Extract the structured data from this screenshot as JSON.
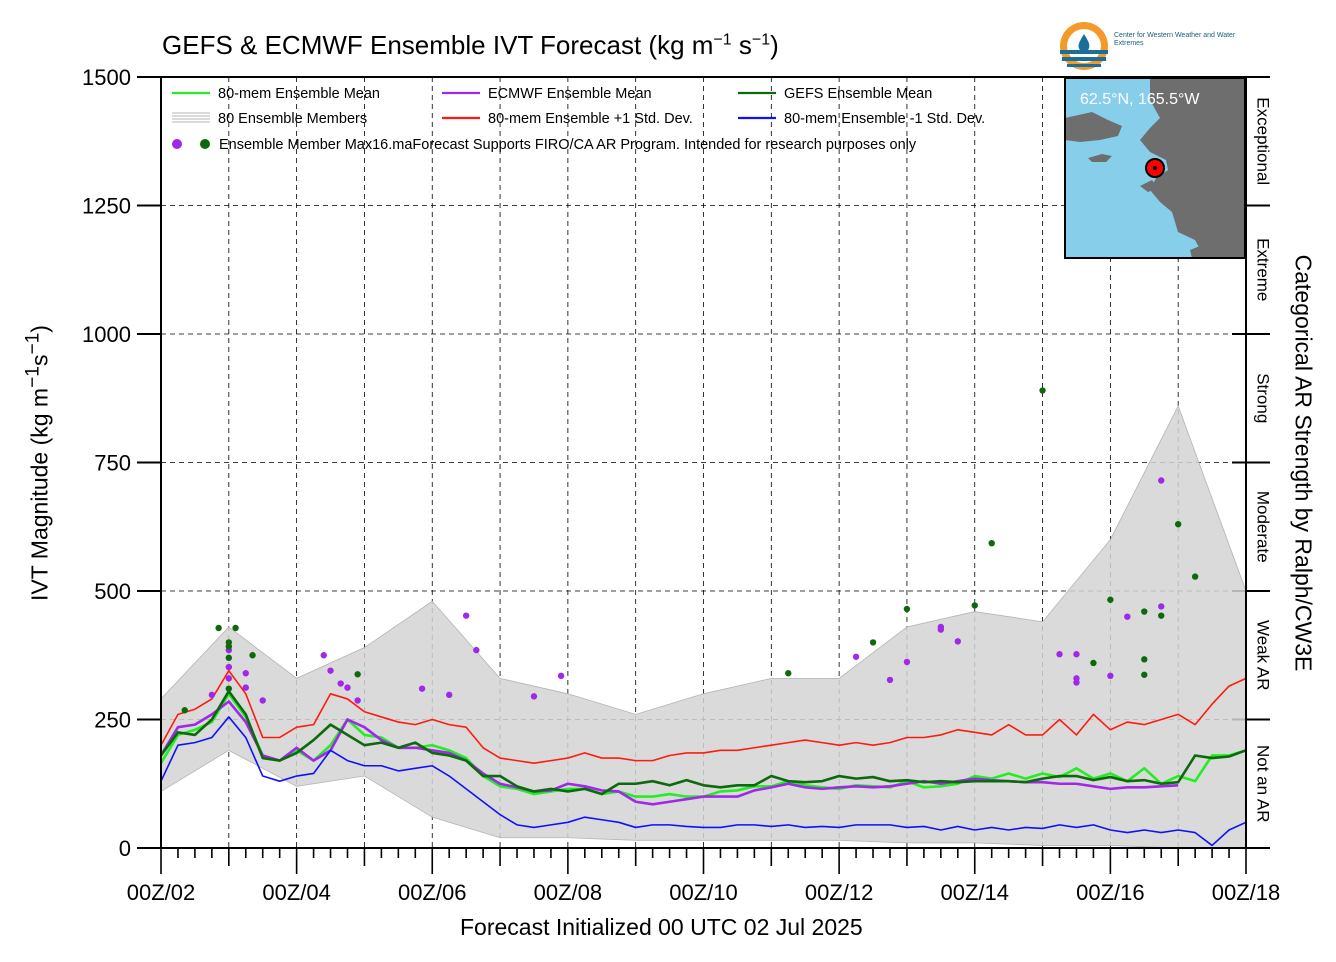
{
  "header": {
    "title_prefix": "GEFS & ECMWF Ensemble IVT Forecast (kg m",
    "title_sup1": "−1",
    "title_mid": " s",
    "title_sup2": "−1",
    "title_suffix": ")"
  },
  "logo": {
    "text": "Center for Western Weather and Water Extremes",
    "brand_color": "#f39a2b",
    "brand_color_2": "#1a6f9a"
  },
  "axes": {
    "xlabel": "Forecast Initialized 00 UTC 02 Jul 2025",
    "ylabel_prefix": "IVT Magnitude (kg m",
    "ylabel_sup1": "−1",
    "ylabel_mid": "s",
    "ylabel_sup2": "−1",
    "ylabel_suffix": ")",
    "right_label": "Categorical AR Strength by Ralph/CW3E"
  },
  "map_inset": {
    "location": "62.5°N, 165.5°W",
    "ocean_color": "#87ceeb",
    "land_color": "#6e6e6e"
  },
  "legend": {
    "items": [
      {
        "label": "80-mem Ensemble Mean",
        "color": "#22ee22"
      },
      {
        "label": "ECMWF Ensemble Mean",
        "color": "#a028e8"
      },
      {
        "label": "GEFS Ensemble Mean",
        "color": "#0c6a0c"
      },
      {
        "label": "80 Ensemble Members",
        "color": "#b4b4b4"
      },
      {
        "label": "80-mem Ensemble +1 Std. Dev.",
        "color": "#ff1a0f"
      },
      {
        "label": "80-mem Ensemble -1 Std. Dev.",
        "color": "#1010ff"
      }
    ],
    "note": "Ensemble Member Max16.maForecast Supports FIRO/CA AR Program. Intended for research purposes only",
    "marker_colors": [
      "#a028e8",
      "#0c6a0c"
    ]
  },
  "chart_data": {
    "type": "line",
    "x_unit": "days after 00Z 02 Jul 2025 (6-hourly)",
    "xlim": [
      0,
      16
    ],
    "ylim": [
      0,
      1500
    ],
    "yticks": [
      0,
      250,
      500,
      750,
      1000,
      1250,
      1500
    ],
    "xtick_labels": [
      "00Z/02",
      "00Z/04",
      "00Z/06",
      "00Z/08",
      "00Z/10",
      "00Z/12",
      "00Z/14",
      "00Z/16",
      "00Z/18"
    ],
    "xtick_label_days": [
      0,
      2,
      4,
      6,
      8,
      10,
      12,
      14,
      16
    ],
    "grid": true,
    "legend_position": "top-left",
    "categories": [
      {
        "label": "Not an AR",
        "range": [
          0,
          250
        ]
      },
      {
        "label": "Weak AR",
        "range": [
          250,
          500
        ]
      },
      {
        "label": "Moderate",
        "range": [
          500,
          750
        ]
      },
      {
        "label": "Strong",
        "range": [
          750,
          1000
        ]
      },
      {
        "label": "Extreme",
        "range": [
          1000,
          1250
        ]
      },
      {
        "label": "Exceptional",
        "range": [
          1250,
          1500
        ]
      }
    ],
    "series": [
      {
        "name": "80-mem Ensemble Mean",
        "color": "#22ee22",
        "x": [
          0,
          0.25,
          0.5,
          0.75,
          1,
          1.25,
          1.5,
          1.75,
          2,
          2.25,
          2.5,
          2.75,
          3,
          3.25,
          3.5,
          3.75,
          4,
          4.25,
          4.5,
          4.75,
          5,
          5.25,
          5.5,
          5.75,
          6,
          6.25,
          6.5,
          6.75,
          7,
          7.25,
          7.5,
          7.75,
          8,
          8.25,
          8.5,
          8.75,
          9,
          9.25,
          9.5,
          9.75,
          10,
          10.25,
          10.5,
          10.75,
          11,
          11.25,
          11.5,
          11.75,
          12,
          12.25,
          12.5,
          12.75,
          13,
          13.25,
          13.5,
          13.75,
          14,
          14.25,
          14.5,
          14.75,
          15,
          15.25,
          15.5,
          15.75,
          16
        ],
        "values": [
          165,
          220,
          230,
          245,
          300,
          255,
          180,
          170,
          190,
          170,
          200,
          250,
          220,
          215,
          195,
          195,
          200,
          190,
          175,
          140,
          120,
          115,
          105,
          110,
          115,
          115,
          105,
          110,
          100,
          100,
          105,
          100,
          100,
          110,
          112,
          120,
          120,
          130,
          122,
          118,
          115,
          122,
          120,
          118,
          130,
          118,
          120,
          125,
          140,
          135,
          145,
          135,
          145,
          138,
          155,
          135,
          145,
          130,
          155,
          125,
          140,
          130,
          180,
          180,
          190
        ]
      },
      {
        "name": "ECMWF Ensemble Mean",
        "color": "#a028e8",
        "x": [
          0,
          0.25,
          0.5,
          0.75,
          1,
          1.25,
          1.5,
          1.75,
          2,
          2.25,
          2.5,
          2.75,
          3,
          3.25,
          3.5,
          3.75,
          4,
          4.25,
          4.5,
          4.75,
          5,
          5.25,
          5.5,
          5.75,
          6,
          6.25,
          6.5,
          6.75,
          7,
          7.25,
          7.5,
          7.75,
          8,
          8.25,
          8.5,
          8.75,
          9,
          9.25,
          9.5,
          9.75,
          10,
          10.25,
          10.5,
          10.75,
          11,
          11.25,
          11.5,
          11.75,
          12,
          12.25,
          12.5,
          12.75,
          13,
          13.25,
          13.5,
          13.75,
          14,
          14.25,
          14.5,
          14.75,
          15
        ],
        "values": [
          180,
          235,
          240,
          260,
          285,
          245,
          180,
          170,
          195,
          170,
          190,
          250,
          235,
          210,
          195,
          195,
          190,
          185,
          170,
          145,
          125,
          118,
          110,
          112,
          125,
          120,
          112,
          110,
          90,
          85,
          90,
          95,
          100,
          100,
          100,
          112,
          118,
          125,
          118,
          115,
          118,
          120,
          118,
          120,
          125,
          130,
          125,
          130,
          135,
          132,
          130,
          128,
          128,
          125,
          125,
          120,
          115,
          118,
          118,
          120,
          122
        ]
      },
      {
        "name": "GEFS Ensemble Mean",
        "color": "#0c6a0c",
        "x": [
          0,
          0.25,
          0.5,
          0.75,
          1,
          1.25,
          1.5,
          1.75,
          2,
          2.25,
          2.5,
          2.75,
          3,
          3.25,
          3.5,
          3.75,
          4,
          4.25,
          4.5,
          4.75,
          5,
          5.25,
          5.5,
          5.75,
          6,
          6.25,
          6.5,
          6.75,
          7,
          7.25,
          7.5,
          7.75,
          8,
          8.25,
          8.5,
          8.75,
          9,
          9.25,
          9.5,
          9.75,
          10,
          10.25,
          10.5,
          10.75,
          11,
          11.25,
          11.5,
          11.75,
          12,
          12.25,
          12.5,
          12.75,
          13,
          13.25,
          13.5,
          13.75,
          14,
          14.25,
          14.5,
          14.75,
          15,
          15.25,
          15.5,
          15.75,
          16
        ],
        "values": [
          180,
          225,
          220,
          250,
          305,
          260,
          175,
          170,
          185,
          210,
          240,
          220,
          200,
          205,
          195,
          205,
          185,
          180,
          170,
          140,
          140,
          120,
          110,
          115,
          110,
          115,
          105,
          125,
          125,
          130,
          122,
          132,
          122,
          118,
          122,
          122,
          140,
          130,
          128,
          130,
          140,
          135,
          138,
          130,
          132,
          128,
          130,
          128,
          130,
          130,
          130,
          128,
          135,
          140,
          140,
          132,
          138,
          130,
          132,
          125,
          128,
          180,
          175,
          178,
          190
        ]
      },
      {
        "name": "80-mem Ensemble +1 Std. Dev.",
        "color": "#ff1a0f",
        "x": [
          0,
          0.25,
          0.5,
          0.75,
          1,
          1.25,
          1.5,
          1.75,
          2,
          2.25,
          2.5,
          2.75,
          3,
          3.25,
          3.5,
          3.75,
          4,
          4.25,
          4.5,
          4.75,
          5,
          5.25,
          5.5,
          5.75,
          6,
          6.25,
          6.5,
          6.75,
          7,
          7.25,
          7.5,
          7.75,
          8,
          8.25,
          8.5,
          8.75,
          9,
          9.25,
          9.5,
          9.75,
          10,
          10.25,
          10.5,
          10.75,
          11,
          11.25,
          11.5,
          11.75,
          12,
          12.25,
          12.5,
          12.75,
          13,
          13.25,
          13.5,
          13.75,
          14,
          14.25,
          14.5,
          14.75,
          15,
          15.25,
          15.5,
          15.75,
          16
        ],
        "values": [
          200,
          260,
          270,
          290,
          345,
          300,
          215,
          215,
          235,
          240,
          300,
          290,
          265,
          255,
          245,
          240,
          250,
          240,
          235,
          195,
          175,
          170,
          165,
          170,
          175,
          185,
          175,
          175,
          170,
          170,
          180,
          185,
          185,
          190,
          190,
          195,
          200,
          205,
          210,
          205,
          200,
          205,
          200,
          205,
          215,
          215,
          220,
          230,
          225,
          220,
          240,
          220,
          220,
          250,
          220,
          260,
          230,
          245,
          240,
          250,
          260,
          240,
          280,
          315,
          330
        ]
      },
      {
        "name": "80-mem Ensemble -1 Std. Dev.",
        "color": "#1010ff",
        "x": [
          0,
          0.25,
          0.5,
          0.75,
          1,
          1.25,
          1.5,
          1.75,
          2,
          2.25,
          2.5,
          2.75,
          3,
          3.25,
          3.5,
          3.75,
          4,
          4.25,
          4.5,
          4.75,
          5,
          5.25,
          5.5,
          5.75,
          6,
          6.25,
          6.5,
          6.75,
          7,
          7.25,
          7.5,
          7.75,
          8,
          8.25,
          8.5,
          8.75,
          9,
          9.25,
          9.5,
          9.75,
          10,
          10.25,
          10.5,
          10.75,
          11,
          11.25,
          11.5,
          11.75,
          12,
          12.25,
          12.5,
          12.75,
          13,
          13.25,
          13.5,
          13.75,
          14,
          14.25,
          14.5,
          14.75,
          15,
          15.25,
          15.5,
          15.75,
          16
        ],
        "values": [
          130,
          200,
          205,
          215,
          255,
          215,
          140,
          130,
          140,
          145,
          190,
          170,
          160,
          160,
          150,
          155,
          160,
          140,
          115,
          90,
          65,
          45,
          40,
          45,
          50,
          60,
          55,
          50,
          40,
          45,
          45,
          42,
          40,
          40,
          45,
          45,
          42,
          45,
          40,
          42,
          40,
          45,
          45,
          45,
          40,
          42,
          35,
          42,
          35,
          40,
          35,
          40,
          38,
          45,
          40,
          45,
          35,
          30,
          35,
          30,
          35,
          30,
          5,
          35,
          50
        ]
      }
    ],
    "ensemble_spread": {
      "name": "80 Ensemble Members",
      "x": [
        0,
        1,
        2,
        3,
        4,
        5,
        6,
        7,
        8,
        9,
        10,
        11,
        12,
        13,
        14,
        15,
        16
      ],
      "min": [
        110,
        190,
        120,
        140,
        60,
        20,
        20,
        15,
        15,
        15,
        15,
        10,
        10,
        5,
        5,
        0,
        0
      ],
      "max": [
        290,
        430,
        330,
        390,
        480,
        330,
        300,
        260,
        300,
        330,
        330,
        430,
        460,
        440,
        600,
        860,
        500
      ]
    },
    "ecmwf_member_max": [
      {
        "x": 0.75,
        "y": 298
      },
      {
        "x": 1.0,
        "y": 385
      },
      {
        "x": 1.0,
        "y": 352
      },
      {
        "x": 1.0,
        "y": 330
      },
      {
        "x": 1.25,
        "y": 340
      },
      {
        "x": 1.25,
        "y": 312
      },
      {
        "x": 1.5,
        "y": 287
      },
      {
        "x": 2.4,
        "y": 375
      },
      {
        "x": 2.5,
        "y": 345
      },
      {
        "x": 2.65,
        "y": 320
      },
      {
        "x": 2.75,
        "y": 312
      },
      {
        "x": 2.9,
        "y": 287
      },
      {
        "x": 3.85,
        "y": 310
      },
      {
        "x": 4.25,
        "y": 298
      },
      {
        "x": 4.5,
        "y": 452
      },
      {
        "x": 4.65,
        "y": 385
      },
      {
        "x": 5.5,
        "y": 295
      },
      {
        "x": 5.9,
        "y": 335
      },
      {
        "x": 10.25,
        "y": 372
      },
      {
        "x": 10.75,
        "y": 327
      },
      {
        "x": 11.0,
        "y": 362
      },
      {
        "x": 11.5,
        "y": 430
      },
      {
        "x": 11.5,
        "y": 425
      },
      {
        "x": 11.75,
        "y": 402
      },
      {
        "x": 13.25,
        "y": 377
      },
      {
        "x": 13.5,
        "y": 377
      },
      {
        "x": 13.5,
        "y": 330
      },
      {
        "x": 13.5,
        "y": 322
      },
      {
        "x": 14.0,
        "y": 335
      },
      {
        "x": 14.25,
        "y": 450
      },
      {
        "x": 14.75,
        "y": 715
      },
      {
        "x": 14.75,
        "y": 470
      }
    ],
    "gefs_member_max": [
      {
        "x": 0.35,
        "y": 268
      },
      {
        "x": 0.85,
        "y": 428
      },
      {
        "x": 1.0,
        "y": 400
      },
      {
        "x": 1.0,
        "y": 392
      },
      {
        "x": 1.0,
        "y": 370
      },
      {
        "x": 1.0,
        "y": 310
      },
      {
        "x": 1.1,
        "y": 428
      },
      {
        "x": 1.35,
        "y": 375
      },
      {
        "x": 2.9,
        "y": 338
      },
      {
        "x": 9.25,
        "y": 340
      },
      {
        "x": 10.5,
        "y": 400
      },
      {
        "x": 11.0,
        "y": 465
      },
      {
        "x": 12.0,
        "y": 472
      },
      {
        "x": 12.25,
        "y": 593
      },
      {
        "x": 13.0,
        "y": 890
      },
      {
        "x": 13.75,
        "y": 360
      },
      {
        "x": 14.0,
        "y": 483
      },
      {
        "x": 14.5,
        "y": 460
      },
      {
        "x": 14.5,
        "y": 367
      },
      {
        "x": 14.5,
        "y": 337
      },
      {
        "x": 14.75,
        "y": 452
      },
      {
        "x": 15.0,
        "y": 630
      },
      {
        "x": 15.25,
        "y": 528
      }
    ]
  }
}
